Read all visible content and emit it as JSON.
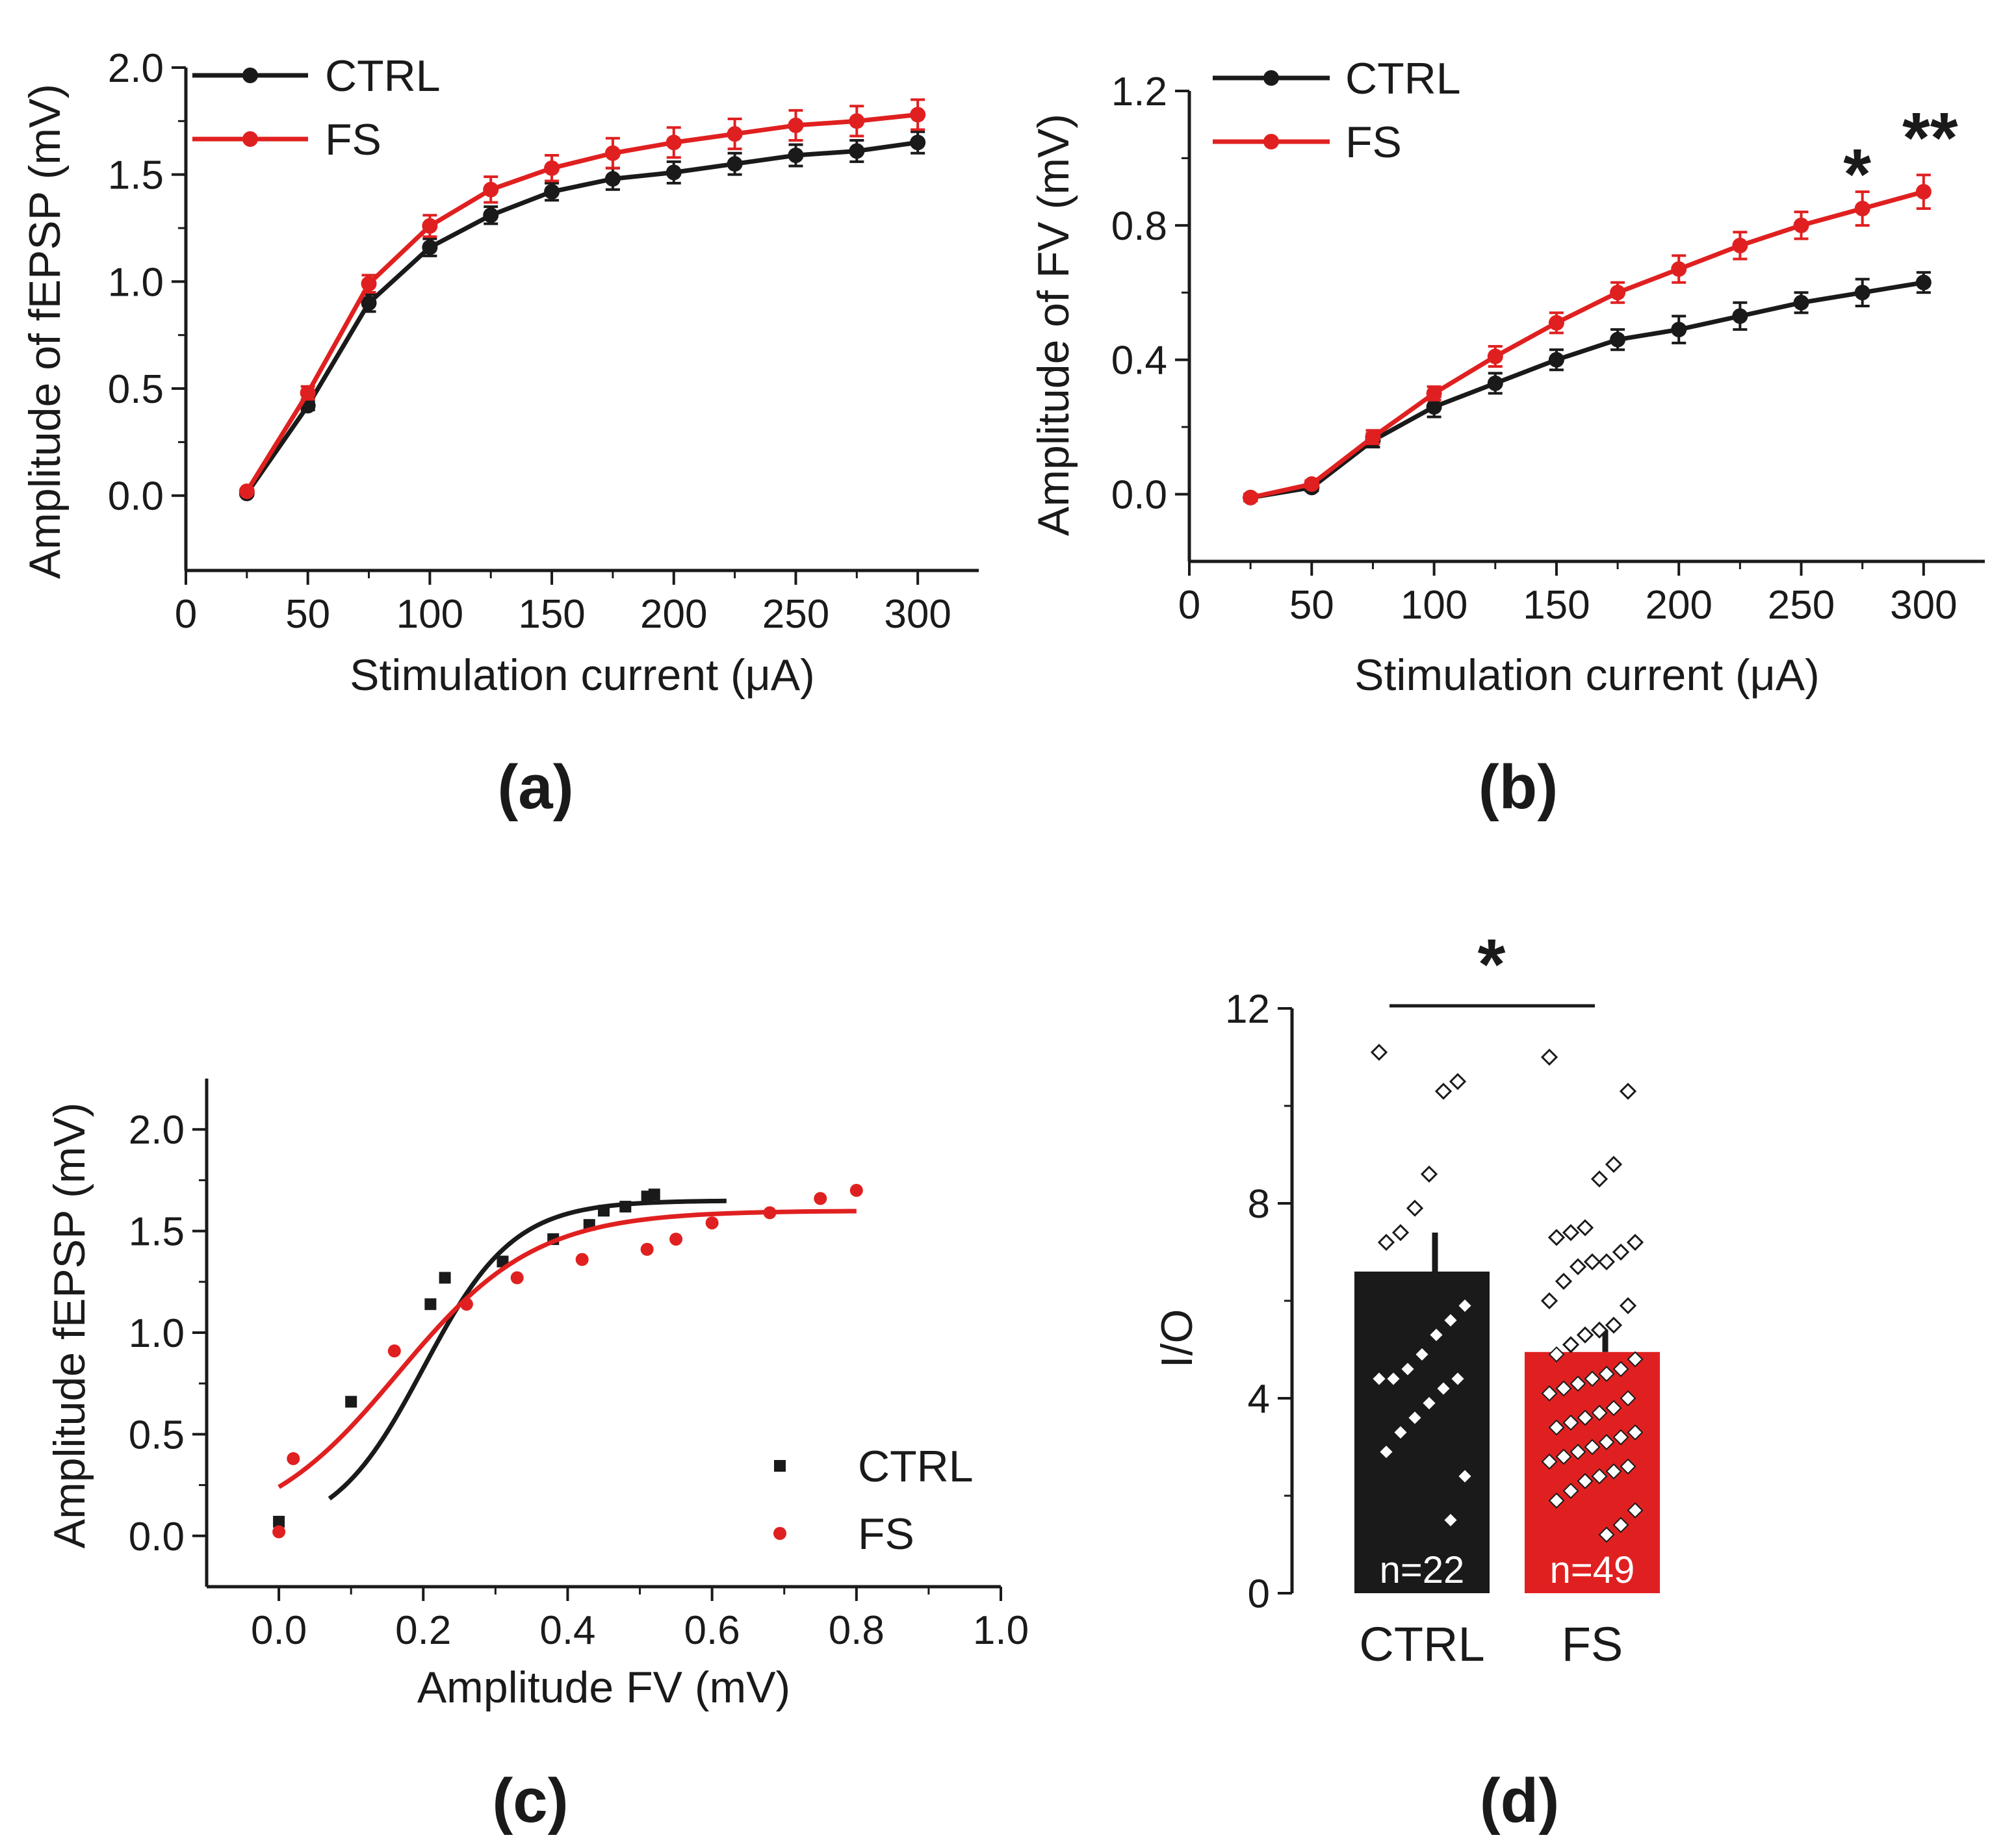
{
  "colors": {
    "ctrl": "#1a1a1a",
    "fs": "#e02020",
    "axis": "#1a1a1a",
    "marker_fill": "#ffffff"
  },
  "chart_data": [
    {
      "id": "a",
      "type": "line",
      "panel_label": "(a)",
      "xlabel": "Stimulation current (μA)",
      "ylabel": "Amplitude of fEPSP (mV)",
      "xlim": [
        0,
        325
      ],
      "ylim": [
        -0.35,
        2.0
      ],
      "xticks": [
        0,
        50,
        100,
        150,
        200,
        250,
        300
      ],
      "yticks": [
        0.0,
        0.5,
        1.0,
        1.5,
        2.0
      ],
      "xtick_labels": [
        "0",
        "50",
        "100",
        "150",
        "200",
        "250",
        "300"
      ],
      "ytick_labels": [
        "0.0",
        "0.5",
        "1.0",
        "1.5",
        "2.0"
      ],
      "legend": [
        "CTRL",
        "FS"
      ],
      "legend_position": "top-left",
      "x": [
        25,
        50,
        75,
        100,
        125,
        150,
        175,
        200,
        225,
        250,
        275,
        300
      ],
      "series": [
        {
          "name": "CTRL",
          "color_key": "ctrl",
          "values": [
            0.01,
            0.42,
            0.9,
            1.16,
            1.31,
            1.42,
            1.48,
            1.51,
            1.55,
            1.59,
            1.61,
            1.65
          ],
          "errors": [
            0.01,
            0.02,
            0.04,
            0.04,
            0.04,
            0.04,
            0.05,
            0.05,
            0.05,
            0.05,
            0.05,
            0.05
          ]
        },
        {
          "name": "FS",
          "color_key": "fs",
          "values": [
            0.02,
            0.48,
            0.99,
            1.26,
            1.43,
            1.53,
            1.6,
            1.65,
            1.69,
            1.73,
            1.75,
            1.78
          ],
          "errors": [
            0.01,
            0.03,
            0.04,
            0.05,
            0.06,
            0.06,
            0.07,
            0.07,
            0.07,
            0.07,
            0.07,
            0.07
          ]
        }
      ]
    },
    {
      "id": "b",
      "type": "line",
      "panel_label": "(b)",
      "xlabel": "Stimulation current (μA)",
      "ylabel": "Amplitude of FV (mV)",
      "xlim": [
        0,
        325
      ],
      "ylim": [
        -0.2,
        1.2
      ],
      "xticks": [
        0,
        50,
        100,
        150,
        200,
        250,
        300
      ],
      "yticks": [
        0.0,
        0.4,
        0.8,
        1.2
      ],
      "xtick_labels": [
        "0",
        "50",
        "100",
        "150",
        "200",
        "250",
        "300"
      ],
      "ytick_labels": [
        "0.0",
        "0.4",
        "0.8",
        "1.2"
      ],
      "legend": [
        "CTRL",
        "FS"
      ],
      "legend_position": "top-left",
      "annotations": [
        {
          "text": "*",
          "x": 275
        },
        {
          "text": "**",
          "x": 300
        }
      ],
      "x": [
        25,
        50,
        75,
        100,
        125,
        150,
        175,
        200,
        225,
        250,
        275,
        300
      ],
      "series": [
        {
          "name": "CTRL",
          "color_key": "ctrl",
          "values": [
            -0.01,
            0.02,
            0.16,
            0.26,
            0.33,
            0.4,
            0.46,
            0.49,
            0.53,
            0.57,
            0.6,
            0.63
          ],
          "errors": [
            0.01,
            0.01,
            0.02,
            0.03,
            0.03,
            0.03,
            0.03,
            0.04,
            0.04,
            0.03,
            0.04,
            0.03
          ]
        },
        {
          "name": "FS",
          "color_key": "fs",
          "values": [
            -0.01,
            0.03,
            0.17,
            0.3,
            0.41,
            0.51,
            0.6,
            0.67,
            0.74,
            0.8,
            0.85,
            0.9
          ],
          "errors": [
            0.01,
            0.01,
            0.02,
            0.02,
            0.03,
            0.03,
            0.03,
            0.04,
            0.04,
            0.04,
            0.05,
            0.05
          ]
        }
      ]
    },
    {
      "id": "c",
      "type": "scatter",
      "panel_label": "(c)",
      "xlabel": "Amplitude FV (mV)",
      "ylabel": "Amplitude fEPSP (mV)",
      "xlim": [
        -0.1,
        1.0
      ],
      "ylim": [
        -0.25,
        2.25
      ],
      "xticks": [
        0.0,
        0.2,
        0.4,
        0.6,
        0.8,
        1.0
      ],
      "yticks": [
        0.0,
        0.5,
        1.0,
        1.5,
        2.0
      ],
      "xtick_labels": [
        "0.0",
        "0.2",
        "0.4",
        "0.6",
        "0.8",
        "1.0"
      ],
      "ytick_labels": [
        "0.0",
        "0.5",
        "1.0",
        "1.5",
        "2.0"
      ],
      "legend": [
        "CTRL",
        "FS"
      ],
      "legend_position": "bottom-right",
      "series": [
        {
          "name": "CTRL",
          "color_key": "ctrl",
          "marker": "square",
          "x": [
            0.0,
            0.1,
            0.21,
            0.23,
            0.31,
            0.38,
            0.43,
            0.45,
            0.48,
            0.51,
            0.52
          ],
          "y": [
            0.07,
            0.66,
            1.14,
            1.27,
            1.35,
            1.46,
            1.53,
            1.6,
            1.62,
            1.67,
            1.68
          ],
          "fit": {
            "x0": 0.07,
            "x1": 0.62,
            "top": 1.65,
            "mid": 0.2,
            "k": 16.0
          }
        },
        {
          "name": "FS",
          "color_key": "fs",
          "marker": "circle",
          "x": [
            0.0,
            0.02,
            0.16,
            0.26,
            0.33,
            0.42,
            0.51,
            0.55,
            0.6,
            0.68,
            0.75,
            0.8
          ],
          "y": [
            0.02,
            0.38,
            0.91,
            1.14,
            1.27,
            1.36,
            1.41,
            1.46,
            1.54,
            1.59,
            1.66,
            1.7
          ],
          "fit": {
            "x0": 0.0,
            "x1": 0.8,
            "top": 1.6,
            "mid": 0.165,
            "k": 10.5
          }
        }
      ]
    },
    {
      "id": "d",
      "type": "bar",
      "panel_label": "(d)",
      "xlabel": "",
      "ylabel": "I/O",
      "ylim": [
        0,
        12
      ],
      "yticks": [
        0,
        4,
        8,
        12
      ],
      "ytick_labels": [
        "0",
        "4",
        "8",
        "12"
      ],
      "categories": [
        "CTRL",
        "FS"
      ],
      "values": [
        6.6,
        4.95
      ],
      "errors": [
        0.8,
        0.45
      ],
      "n_labels": [
        "n=22",
        "n=49"
      ],
      "significance": "*",
      "points": [
        [
          11.1,
          10.5,
          10.3,
          8.6,
          7.9,
          7.4,
          7.2,
          5.9,
          5.6,
          5.3,
          4.9,
          4.6,
          4.4,
          4.4,
          4.4,
          4.2,
          3.9,
          3.6,
          3.3,
          2.9,
          2.4,
          1.5
        ],
        [
          11.0,
          10.3,
          8.8,
          8.5,
          7.5,
          7.4,
          7.3,
          7.2,
          7.0,
          6.8,
          6.8,
          6.7,
          6.4,
          6.0,
          5.9,
          5.5,
          5.4,
          5.3,
          5.1,
          4.9,
          4.8,
          4.6,
          4.5,
          4.4,
          4.3,
          4.2,
          4.1,
          4.0,
          3.8,
          3.7,
          3.6,
          3.5,
          3.4,
          3.3,
          3.2,
          3.1,
          3.0,
          2.9,
          2.8,
          2.7,
          2.6,
          2.5,
          2.4,
          2.3,
          2.1,
          1.9,
          1.7,
          1.4,
          1.2
        ]
      ]
    }
  ]
}
